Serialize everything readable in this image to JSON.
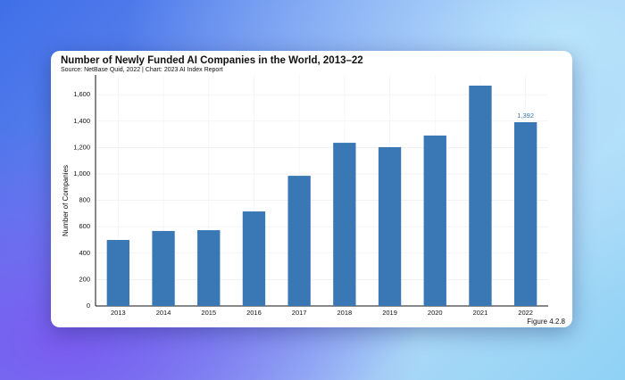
{
  "chart_data": {
    "type": "bar",
    "title": "Number of Newly Funded AI Companies in the World, 2013–22",
    "subtitle": "Source: NetBase Quid, 2022 | Chart: 2023 AI Index Report",
    "ylabel": "Number of Companies",
    "figure_label": "Figure 4.2.8",
    "categories": [
      "2013",
      "2014",
      "2015",
      "2016",
      "2017",
      "2018",
      "2019",
      "2020",
      "2021",
      "2022"
    ],
    "values": [
      500,
      568,
      574,
      716,
      986,
      1236,
      1203,
      1291,
      1669,
      1392
    ],
    "value_labels": [
      null,
      null,
      null,
      null,
      null,
      null,
      null,
      null,
      null,
      "1,392"
    ],
    "color": "#3a78b5",
    "ylim": [
      0,
      1750
    ],
    "yticks": [
      0,
      200,
      400,
      600,
      800,
      {
        "value": 1000,
        "label": "1,000"
      },
      {
        "value": 1200,
        "label": "1,200"
      },
      {
        "value": 1400,
        "label": "1,400"
      },
      {
        "value": 1600,
        "label": "1,600"
      }
    ],
    "grid": true
  }
}
